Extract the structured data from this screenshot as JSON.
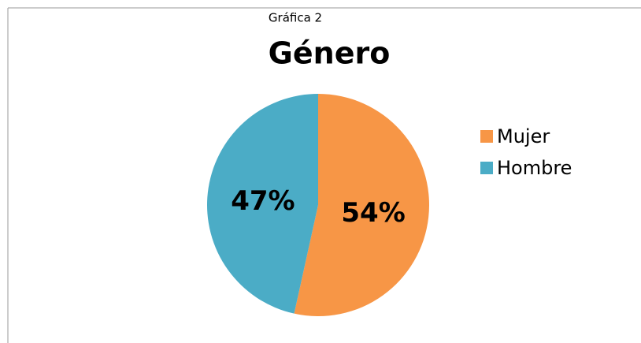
{
  "chart_data": {
    "type": "pie",
    "subtitle": "Gráfica 2",
    "title": "Género",
    "categories": [
      "Mujer",
      "Hombre"
    ],
    "values": [
      54,
      47
    ],
    "value_labels": [
      "54%",
      "47%"
    ],
    "colors": [
      "#f79646",
      "#4bacc6"
    ],
    "legend": "right"
  }
}
